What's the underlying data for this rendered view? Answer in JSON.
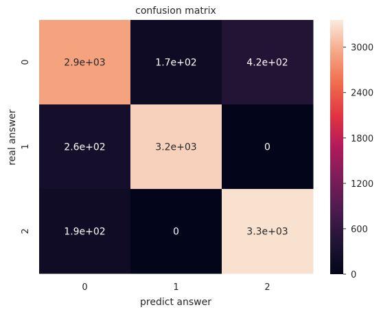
{
  "chart_data": {
    "type": "heatmap",
    "title": "confusion matrix",
    "xlabel": "predict answer",
    "ylabel": "real answer",
    "x_categories": [
      "0",
      "1",
      "2"
    ],
    "y_categories": [
      "0",
      "1",
      "2"
    ],
    "values": [
      [
        2900,
        170,
        420
      ],
      [
        260,
        3200,
        0
      ],
      [
        190,
        0,
        3300
      ]
    ],
    "annotations": [
      [
        "2.9e+03",
        "1.7e+02",
        "4.2e+02"
      ],
      [
        "2.6e+02",
        "3.2e+03",
        "0"
      ],
      [
        "1.9e+02",
        "0",
        "3.3e+03"
      ]
    ],
    "colorbar": {
      "range": [
        0,
        3360
      ],
      "ticks": [
        0,
        600,
        1200,
        1800,
        2400,
        3000
      ],
      "tick_labels": [
        "0",
        "600",
        "1200",
        "1800",
        "2400",
        "3000"
      ],
      "colormap": "rocket"
    }
  }
}
